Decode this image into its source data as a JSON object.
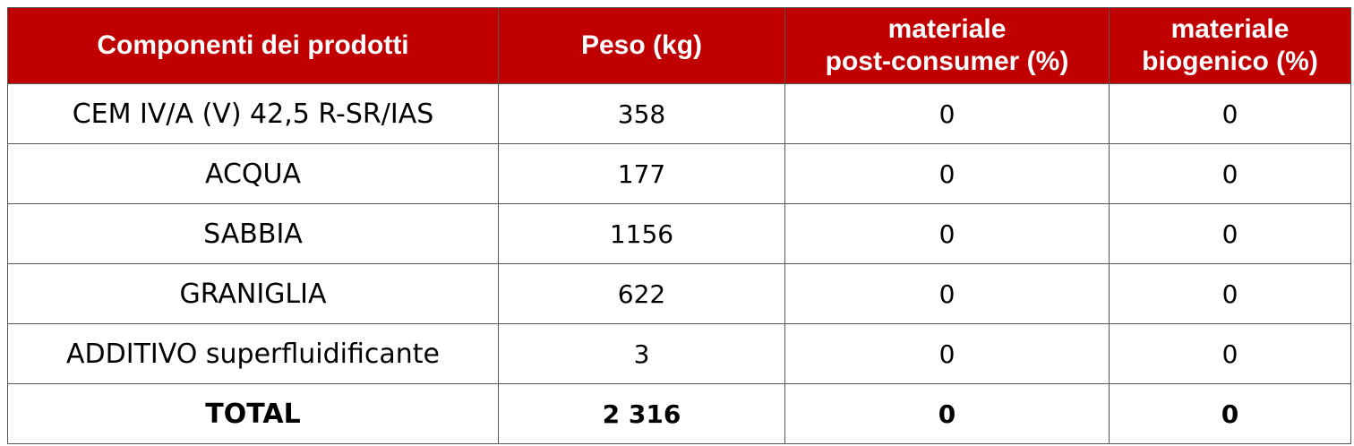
{
  "table": {
    "headers": [
      {
        "lines": [
          "Componenti dei prodotti"
        ]
      },
      {
        "lines": [
          "Peso (kg)"
        ]
      },
      {
        "lines": [
          "materiale",
          "post-consumer (%)"
        ]
      },
      {
        "lines": [
          "materiale",
          "biogenico (%)"
        ]
      }
    ],
    "rows": [
      {
        "component": "CEM IV/A (V) 42,5 R-SR/IAS",
        "weight": "358",
        "post_consumer": "0",
        "biogenic": "0"
      },
      {
        "component": "ACQUA",
        "weight": "177",
        "post_consumer": "0",
        "biogenic": "0"
      },
      {
        "component": "SABBIA",
        "weight": "1156",
        "post_consumer": "0",
        "biogenic": "0"
      },
      {
        "component": "GRANIGLIA",
        "weight": "622",
        "post_consumer": "0",
        "biogenic": "0"
      },
      {
        "component": "ADDITIVO superfluidificante",
        "weight": "3",
        "post_consumer": "0",
        "biogenic": "0"
      }
    ],
    "total": {
      "component": "TOTAL",
      "weight": "2 316",
      "post_consumer": "0",
      "biogenic": "0"
    }
  },
  "colors": {
    "header_background": "#c00000",
    "header_text": "#ffffff",
    "border": "#555555"
  }
}
